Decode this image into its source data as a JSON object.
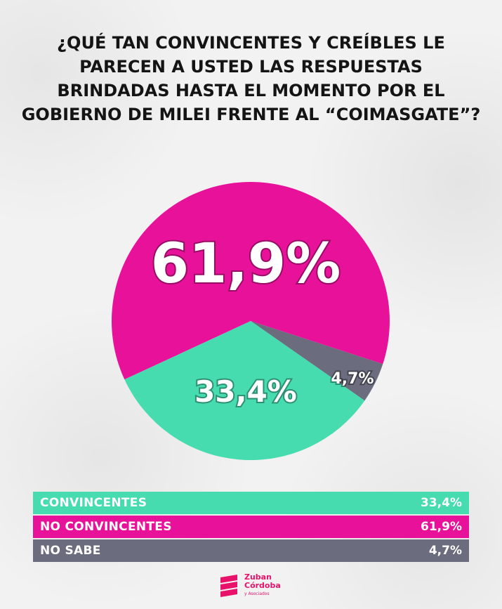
{
  "title": "¿QUÉ TAN CONVINCENTES Y CREÍBLES LE PARECEN A USTED LAS RESPUESTAS BRINDADAS HASTA EL MOMENTO POR EL GOBIERNO DE MILEI FRENTE AL “COIMASGATE”?",
  "colors": {
    "convincentes": "#46dcaf",
    "no_convincentes": "#e8129a",
    "no_sabe": "#6b6c7d"
  },
  "chart_data": {
    "type": "pie",
    "title": "¿QUÉ TAN CONVINCENTES Y CREÍBLES LE PARECEN A USTED LAS RESPUESTAS BRINDADAS HASTA EL MOMENTO POR EL GOBIERNO DE MILEI FRENTE AL “COIMASGATE”?",
    "slices": [
      {
        "label": "CONVINCENTES",
        "value": 33.4,
        "display": "33,4%",
        "color": "#46dcaf"
      },
      {
        "label": "NO CONVINCENTES",
        "value": 61.9,
        "display": "61,9%",
        "color": "#e8129a"
      },
      {
        "label": "NO SABE",
        "value": 4.7,
        "display": "4,7%",
        "color": "#6b6c7d"
      }
    ]
  },
  "legend": [
    {
      "label": "CONVINCENTES",
      "value": "33,4%",
      "color": "#46dcaf"
    },
    {
      "label": "NO CONVINCENTES",
      "value": "61,9%",
      "color": "#e8129a"
    },
    {
      "label": "NO SABE",
      "value": "4,7%",
      "color": "#6b6c7d"
    }
  ],
  "logo": {
    "line1": "Zuban",
    "line2": "Córdoba",
    "line3": "y Asociados"
  }
}
